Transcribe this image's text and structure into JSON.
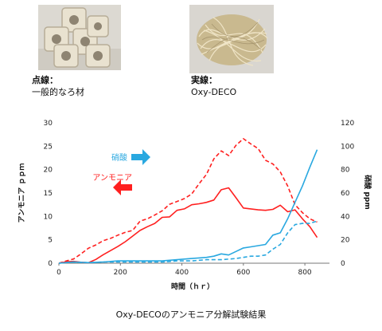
{
  "photos": {
    "left_icon": "ceramic-rings-photo",
    "right_icon": "fiber-tangle-photo"
  },
  "legend_notes": {
    "left": {
      "heading": "点線：",
      "text": "一般的なろ材"
    },
    "right": {
      "heading": "実線：",
      "text": "Oxy-DECO"
    }
  },
  "figure_caption": "Oxy-DECOのアンモニア分解試験結果",
  "chart_data": {
    "type": "line",
    "xlabel": "時間（ｈｒ）",
    "ylabel_left": "アンモニア ｐｐｍ",
    "ylabel_right": "硝酸 ppm",
    "xlim": [
      0,
      880
    ],
    "ylim_left": [
      0,
      30
    ],
    "ylim_right": [
      0,
      120
    ],
    "xticks": [
      0,
      200,
      400,
      600,
      800
    ],
    "yticks_left": [
      0,
      5,
      10,
      15,
      20,
      25,
      30
    ],
    "yticks_right": [
      0,
      20,
      40,
      60,
      80,
      100,
      120
    ],
    "grid": false,
    "annotations": [
      {
        "text": "硝酸",
        "color": "#29a8e0",
        "arrow": "right"
      },
      {
        "text": "アンモニア",
        "color": "#ff2020",
        "arrow": "left"
      }
    ],
    "series": [
      {
        "name": "",
        "axis": "left",
        "color": "#ff2020",
        "style": "solid",
        "x": [
          0,
          24,
          48,
          72,
          96,
          120,
          144,
          168,
          192,
          216,
          240,
          264,
          288,
          312,
          336,
          360,
          384,
          408,
          432,
          456,
          480,
          504,
          528,
          552,
          576,
          600,
          624,
          648,
          672,
          696,
          720,
          744,
          768,
          792,
          816,
          840
        ],
        "y": [
          0,
          0.3,
          0.4,
          0.2,
          0.1,
          0.8,
          1.8,
          2.7,
          3.6,
          4.6,
          5.8,
          7,
          7.8,
          8.5,
          9.8,
          9.9,
          11.3,
          11.6,
          12.5,
          12.7,
          13,
          13.5,
          15.7,
          16.1,
          14,
          11.8,
          11.6,
          11.4,
          11.3,
          11.5,
          12.4,
          11,
          11.4,
          9.5,
          7.8,
          5.5
        ]
      },
      {
        "name": "",
        "axis": "left",
        "color": "#ff2020",
        "style": "dashed",
        "x": [
          0,
          24,
          48,
          72,
          96,
          120,
          144,
          168,
          192,
          216,
          240,
          264,
          288,
          312,
          336,
          360,
          384,
          408,
          432,
          456,
          480,
          504,
          528,
          552,
          576,
          600,
          624,
          648,
          672,
          696,
          720,
          744,
          768,
          792,
          816,
          840
        ],
        "y": [
          0,
          0.5,
          0.9,
          2,
          3.2,
          3.9,
          4.8,
          5.3,
          6,
          6.6,
          7,
          9,
          9.5,
          10.3,
          11.2,
          12.6,
          13.2,
          13.8,
          14.8,
          17,
          19,
          22.3,
          24,
          23,
          25.2,
          26.6,
          25.5,
          24.5,
          22,
          21.2,
          19.5,
          16.5,
          12.5,
          10.8,
          9.5,
          8.8
        ]
      },
      {
        "name": "",
        "axis": "right",
        "color": "#29a8e0",
        "style": "solid",
        "x": [
          0,
          48,
          96,
          144,
          192,
          240,
          288,
          336,
          384,
          432,
          480,
          504,
          528,
          552,
          576,
          600,
          624,
          648,
          672,
          696,
          720,
          744,
          768,
          792,
          816,
          840
        ],
        "y": [
          0,
          1,
          0.5,
          1,
          2,
          2,
          2,
          2,
          3,
          4,
          5,
          6,
          8,
          7,
          10,
          13,
          14,
          15,
          16,
          24,
          26,
          38,
          52,
          66,
          82,
          97
        ]
      },
      {
        "name": "",
        "axis": "right",
        "color": "#29a8e0",
        "style": "dashed",
        "x": [
          0,
          48,
          96,
          144,
          192,
          240,
          288,
          336,
          384,
          432,
          480,
          528,
          576,
          600,
          624,
          648,
          672,
          696,
          720,
          744,
          768,
          792,
          816,
          840
        ],
        "y": [
          0,
          1,
          0.5,
          1,
          1,
          1,
          1,
          1,
          2,
          2,
          3,
          3,
          4,
          5,
          6,
          6,
          7,
          12,
          16,
          26,
          33,
          34,
          34,
          36
        ]
      }
    ]
  }
}
